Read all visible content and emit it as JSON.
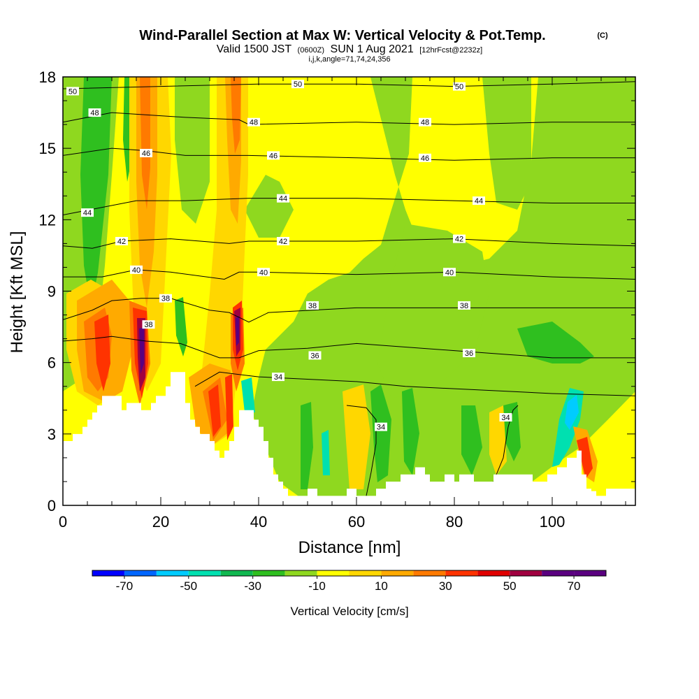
{
  "title": {
    "main": "Wind-Parallel Section at Max W: Vertical Velocity & Pot.Temp.",
    "copyright": "(C)",
    "valid_prefix": "Valid 1500 JST",
    "valid_utc": "(0600Z)",
    "valid_date": "SUN 1 Aug 2021",
    "forecast": "[12hrFcst@2232z]",
    "indices": "i,j,k,angle=71,74,24,356"
  },
  "chart_data": {
    "type": "heatmap",
    "xlabel": "Distance [nm]",
    "ylabel": "Height [Kft MSL]",
    "xlim": [
      0,
      117
    ],
    "ylim": [
      0,
      18
    ],
    "x_ticks": [
      0,
      20,
      40,
      60,
      80,
      100
    ],
    "x_tick_labels": [
      "0",
      "20",
      "40",
      "60",
      "80",
      "100"
    ],
    "y_ticks": [
      0,
      3,
      6,
      9,
      12,
      15,
      18
    ],
    "y_tick_labels": [
      "0",
      "3",
      "6",
      "9",
      "12",
      "15",
      "18"
    ],
    "colorbar": {
      "title": "Vertical Velocity [cm/s]",
      "levels": [
        -80,
        -70,
        -60,
        -50,
        -40,
        -30,
        -20,
        -10,
        0,
        10,
        20,
        30,
        40,
        50,
        60,
        70,
        80
      ],
      "tick_values": [
        -70,
        -50,
        -30,
        -10,
        10,
        30,
        50,
        70
      ],
      "tick_labels": [
        "-70",
        "-50",
        "-30",
        "-10",
        "10",
        "30",
        "50",
        "70"
      ],
      "colors": [
        "#0000ff",
        "#0066ff",
        "#00ccff",
        "#00e0b0",
        "#10b850",
        "#2fbf1f",
        "#8fd81f",
        "#ffff00",
        "#ffd700",
        "#ffaa00",
        "#ff7a00",
        "#ff3300",
        "#e00000",
        "#a00040",
        "#5a0080",
        "#5a0080"
      ]
    },
    "terrain": [
      [
        0,
        2.7
      ],
      [
        2,
        2.7
      ],
      [
        2,
        3.0
      ],
      [
        4,
        3.0
      ],
      [
        4,
        3.3
      ],
      [
        5,
        3.3
      ],
      [
        5,
        3.6
      ],
      [
        6,
        3.6
      ],
      [
        6,
        3.9
      ],
      [
        7,
        3.9
      ],
      [
        7,
        4.2
      ],
      [
        8,
        4.2
      ],
      [
        8,
        4.6
      ],
      [
        12,
        4.6
      ],
      [
        12,
        4.0
      ],
      [
        13,
        4.0
      ],
      [
        13,
        4.3
      ],
      [
        16,
        4.3
      ],
      [
        16,
        4.0
      ],
      [
        18,
        4.0
      ],
      [
        18,
        4.3
      ],
      [
        19,
        4.3
      ],
      [
        19,
        4.6
      ],
      [
        21,
        4.6
      ],
      [
        21,
        5.0
      ],
      [
        22,
        5.0
      ],
      [
        22,
        5.6
      ],
      [
        25,
        5.6
      ],
      [
        25,
        4.3
      ],
      [
        26,
        4.3
      ],
      [
        26,
        3.6
      ],
      [
        27,
        3.6
      ],
      [
        27,
        3.3
      ],
      [
        28,
        3.3
      ],
      [
        28,
        3.0
      ],
      [
        30,
        3.0
      ],
      [
        30,
        2.7
      ],
      [
        31,
        2.7
      ],
      [
        31,
        2.3
      ],
      [
        32,
        2.3
      ],
      [
        32,
        2.0
      ],
      [
        33,
        2.0
      ],
      [
        33,
        2.3
      ],
      [
        34,
        2.3
      ],
      [
        34,
        2.7
      ],
      [
        35,
        2.7
      ],
      [
        35,
        3.3
      ],
      [
        36,
        3.3
      ],
      [
        36,
        4.0
      ],
      [
        39,
        4.0
      ],
      [
        39,
        3.6
      ],
      [
        40,
        3.6
      ],
      [
        40,
        3.3
      ],
      [
        41,
        3.3
      ],
      [
        41,
        2.7
      ],
      [
        42,
        2.7
      ],
      [
        42,
        2.0
      ],
      [
        43,
        2.0
      ],
      [
        43,
        1.3
      ],
      [
        44,
        1.3
      ],
      [
        44,
        1.0
      ],
      [
        45,
        1.0
      ],
      [
        45,
        0.7
      ],
      [
        46,
        0.7
      ],
      [
        46,
        0.4
      ],
      [
        50,
        0.4
      ],
      [
        50,
        0.7
      ],
      [
        52,
        0.7
      ],
      [
        52,
        0.4
      ],
      [
        58,
        0.4
      ],
      [
        58,
        0.7
      ],
      [
        60,
        0.7
      ],
      [
        60,
        0.4
      ],
      [
        64,
        0.4
      ],
      [
        64,
        0.7
      ],
      [
        66,
        0.7
      ],
      [
        66,
        1.0
      ],
      [
        69,
        1.0
      ],
      [
        69,
        1.3
      ],
      [
        72,
        1.3
      ],
      [
        72,
        1.6
      ],
      [
        74,
        1.6
      ],
      [
        74,
        1.3
      ],
      [
        75,
        1.3
      ],
      [
        75,
        1.0
      ],
      [
        78,
        1.0
      ],
      [
        78,
        1.3
      ],
      [
        80,
        1.3
      ],
      [
        80,
        1.0
      ],
      [
        81,
        1.0
      ],
      [
        81,
        1.3
      ],
      [
        84,
        1.3
      ],
      [
        84,
        1.0
      ],
      [
        88,
        1.0
      ],
      [
        88,
        1.3
      ],
      [
        96,
        1.3
      ],
      [
        96,
        1.0
      ],
      [
        99,
        1.0
      ],
      [
        99,
        1.3
      ],
      [
        101,
        1.3
      ],
      [
        101,
        1.6
      ],
      [
        103,
        1.6
      ],
      [
        103,
        2.0
      ],
      [
        105,
        2.0
      ],
      [
        105,
        2.3
      ],
      [
        106,
        2.3
      ],
      [
        106,
        1.3
      ],
      [
        107,
        1.3
      ],
      [
        107,
        0.7
      ],
      [
        108,
        0.7
      ],
      [
        108,
        0.6
      ],
      [
        109,
        0.6
      ],
      [
        109,
        0.4
      ],
      [
        111,
        0.4
      ],
      [
        111,
        0.7
      ],
      [
        117,
        0.7
      ]
    ],
    "theta_contours": [
      {
        "level": 50,
        "points": [
          [
            0,
            17.5
          ],
          [
            20,
            17.6
          ],
          [
            40,
            17.7
          ],
          [
            60,
            17.7
          ],
          [
            80,
            17.6
          ],
          [
            100,
            17.7
          ],
          [
            117,
            17.8
          ]
        ]
      },
      {
        "level": 48,
        "points": [
          [
            0,
            16.1
          ],
          [
            10,
            16.5
          ],
          [
            25,
            16.3
          ],
          [
            36,
            16.2
          ],
          [
            38,
            16.0
          ],
          [
            60,
            16.1
          ],
          [
            80,
            16.0
          ],
          [
            100,
            16.1
          ],
          [
            117,
            16.1
          ]
        ]
      },
      {
        "level": 46,
        "points": [
          [
            0,
            14.7
          ],
          [
            10,
            15.0
          ],
          [
            17,
            14.9
          ],
          [
            25,
            14.7
          ],
          [
            38,
            14.7
          ],
          [
            60,
            14.6
          ],
          [
            80,
            14.5
          ],
          [
            100,
            14.6
          ],
          [
            117,
            14.6
          ]
        ]
      },
      {
        "level": 44,
        "points": [
          [
            0,
            12.2
          ],
          [
            5,
            12.4
          ],
          [
            15,
            12.8
          ],
          [
            25,
            12.8
          ],
          [
            38,
            12.9
          ],
          [
            60,
            12.9
          ],
          [
            80,
            12.8
          ],
          [
            100,
            12.7
          ],
          [
            117,
            12.7
          ]
        ]
      },
      {
        "level": 42,
        "points": [
          [
            0,
            10.9
          ],
          [
            6,
            10.8
          ],
          [
            12,
            11.1
          ],
          [
            22,
            11.2
          ],
          [
            34,
            11.0
          ],
          [
            38,
            11.1
          ],
          [
            60,
            11.1
          ],
          [
            80,
            11.2
          ],
          [
            100,
            11.0
          ],
          [
            117,
            10.9
          ]
        ]
      },
      {
        "level": 40,
        "points": [
          [
            0,
            9.6
          ],
          [
            8,
            9.6
          ],
          [
            15,
            9.9
          ],
          [
            22,
            9.8
          ],
          [
            33,
            9.5
          ],
          [
            36,
            9.8
          ],
          [
            40,
            9.8
          ],
          [
            60,
            9.7
          ],
          [
            80,
            9.8
          ],
          [
            100,
            9.6
          ],
          [
            117,
            9.5
          ]
        ]
      },
      {
        "level": 38,
        "points": [
          [
            0,
            7.8
          ],
          [
            6,
            8.2
          ],
          [
            10,
            8.6
          ],
          [
            16,
            8.7
          ],
          [
            22,
            8.7
          ],
          [
            30,
            8.2
          ],
          [
            34,
            8.1
          ],
          [
            38,
            7.7
          ],
          [
            42,
            8.1
          ],
          [
            60,
            8.3
          ],
          [
            80,
            8.3
          ],
          [
            100,
            8.3
          ],
          [
            117,
            8.3
          ]
        ]
      },
      {
        "level": 36,
        "points": [
          [
            0,
            6.9
          ],
          [
            6,
            7.0
          ],
          [
            10,
            7.1
          ],
          [
            17,
            6.9
          ],
          [
            24,
            6.8
          ],
          [
            32,
            6.2
          ],
          [
            36,
            6.2
          ],
          [
            40,
            6.5
          ],
          [
            50,
            6.6
          ],
          [
            60,
            6.8
          ],
          [
            80,
            6.5
          ],
          [
            100,
            6.2
          ],
          [
            117,
            6.2
          ]
        ]
      },
      {
        "level": 34,
        "points": [
          [
            27,
            5.0
          ],
          [
            32,
            5.6
          ],
          [
            36,
            5.5
          ],
          [
            40,
            5.4
          ],
          [
            50,
            5.3
          ],
          [
            60,
            5.2
          ],
          [
            70,
            5.0
          ],
          [
            80,
            4.9
          ],
          [
            90,
            4.8
          ],
          [
            100,
            4.7
          ],
          [
            117,
            4.6
          ]
        ]
      },
      {
        "level": 34,
        "points": [
          [
            62,
            0.4
          ],
          [
            63,
            1.4
          ],
          [
            64,
            2.6
          ],
          [
            64,
            3.6
          ],
          [
            62,
            4.1
          ],
          [
            58,
            4.2
          ]
        ]
      },
      {
        "level": 34,
        "points": [
          [
            88,
            1.0
          ],
          [
            90,
            2.0
          ],
          [
            91,
            3.3
          ],
          [
            92,
            4.0
          ],
          [
            93,
            4.2
          ]
        ]
      }
    ],
    "theta_labels": [
      {
        "text": "50",
        "x": 2,
        "y": 17.4
      },
      {
        "text": "50",
        "x": 48,
        "y": 17.7
      },
      {
        "text": "50",
        "x": 81,
        "y": 17.6
      },
      {
        "text": "48",
        "x": 6.5,
        "y": 16.5
      },
      {
        "text": "48",
        "x": 39,
        "y": 16.1
      },
      {
        "text": "48",
        "x": 74,
        "y": 16.1
      },
      {
        "text": "46",
        "x": 17,
        "y": 14.8
      },
      {
        "text": "46",
        "x": 43,
        "y": 14.7
      },
      {
        "text": "46",
        "x": 74,
        "y": 14.6
      },
      {
        "text": "44",
        "x": 5,
        "y": 12.3
      },
      {
        "text": "44",
        "x": 45,
        "y": 12.9
      },
      {
        "text": "44",
        "x": 85,
        "y": 12.8
      },
      {
        "text": "42",
        "x": 12,
        "y": 11.1
      },
      {
        "text": "42",
        "x": 45,
        "y": 11.1
      },
      {
        "text": "42",
        "x": 81,
        "y": 11.2
      },
      {
        "text": "40",
        "x": 15,
        "y": 9.9
      },
      {
        "text": "40",
        "x": 41,
        "y": 9.8
      },
      {
        "text": "40",
        "x": 79,
        "y": 9.8
      },
      {
        "text": "38",
        "x": 21,
        "y": 8.7
      },
      {
        "text": "38",
        "x": 17.5,
        "y": 7.6
      },
      {
        "text": "38",
        "x": 51,
        "y": 8.4
      },
      {
        "text": "38",
        "x": 82,
        "y": 8.4
      },
      {
        "text": "36",
        "x": 51.5,
        "y": 6.3
      },
      {
        "text": "36",
        "x": 83,
        "y": 6.4
      },
      {
        "text": "34",
        "x": 44,
        "y": 5.4
      },
      {
        "text": "34",
        "x": 65,
        "y": 3.3
      },
      {
        "text": "34",
        "x": 90.5,
        "y": 3.7
      }
    ]
  }
}
